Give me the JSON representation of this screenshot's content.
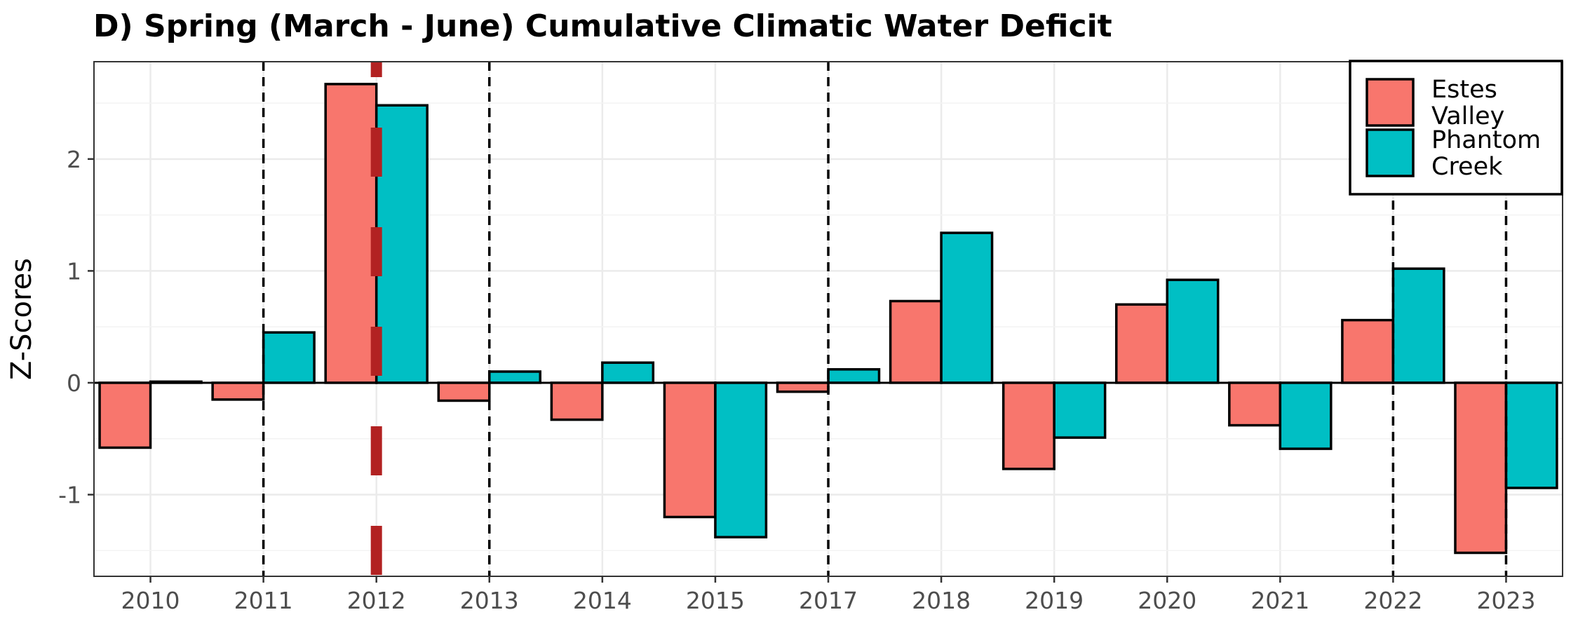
{
  "chart_data": {
    "type": "bar",
    "title": "D) Spring (March - June) Cumulative Climatic Water Deficit",
    "xlabel": "",
    "ylabel": "Z-Scores",
    "categories": [
      "2010",
      "2011",
      "2012",
      "2013",
      "2014",
      "2015",
      "2017",
      "2018",
      "2019",
      "2020",
      "2021",
      "2022",
      "2023"
    ],
    "series": [
      {
        "name": "Estes Valley",
        "color": "#F8766D",
        "values": [
          -0.58,
          -0.15,
          2.67,
          -0.16,
          -0.33,
          -1.2,
          -0.08,
          0.73,
          -0.77,
          0.7,
          -0.38,
          0.56,
          -1.52
        ]
      },
      {
        "name": "Phantom Creek",
        "color": "#00BFC4",
        "values": [
          0.01,
          0.45,
          2.48,
          0.1,
          0.18,
          -1.38,
          0.12,
          1.34,
          -0.49,
          0.92,
          -0.59,
          1.02,
          -0.94
        ]
      }
    ],
    "ylim": [
      -1.73,
      2.87
    ],
    "yticks": [
      -1,
      0,
      1,
      2
    ],
    "ytick_labels": [
      "-1",
      "0",
      "1",
      "2"
    ],
    "grid": true,
    "legend": {
      "placement": "top-right",
      "entries": [
        [
          "Estes",
          "Valley"
        ],
        [
          "Phantom",
          "Creek"
        ]
      ]
    },
    "reference_lines": {
      "black_dashed_at": [
        "2011",
        "2013",
        "2017",
        "2022",
        "2023"
      ],
      "red_dashed_at": "2012",
      "red_color": "#B22222"
    }
  }
}
